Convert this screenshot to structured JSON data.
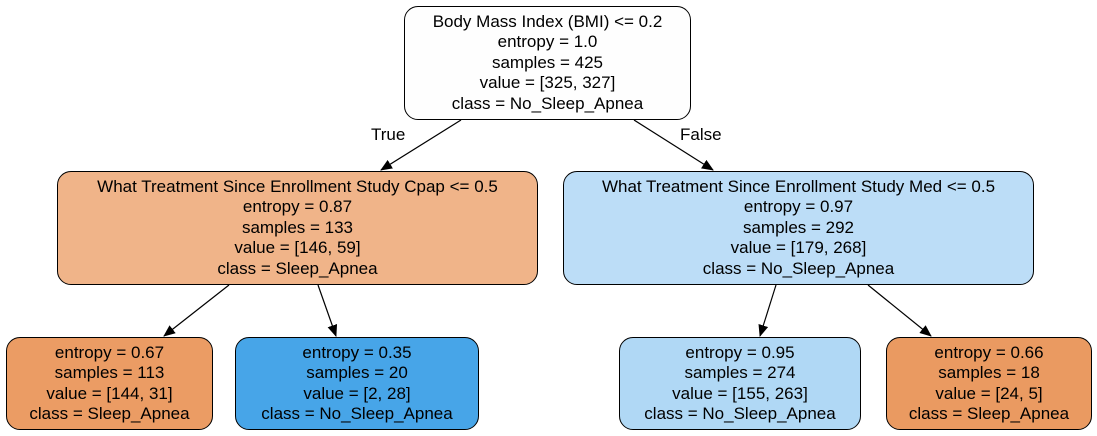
{
  "colors": {
    "root": "#fefefe",
    "left_internal": "#f0b489",
    "right_internal": "#bcddf7",
    "leaf_1": "#eb9c64",
    "leaf_2": "#47a5e8",
    "leaf_3": "#b0d8f5",
    "leaf_4": "#ea9a61"
  },
  "edges": {
    "true_label": "True",
    "false_label": "False"
  },
  "nodes": {
    "root": {
      "condition": "Body Mass Index (BMI) <= 0.2",
      "entropy": "entropy = 1.0",
      "samples": "samples = 425",
      "value": "value = [325, 327]",
      "class": "class = No_Sleep_Apnea"
    },
    "left": {
      "condition": "What Treatment Since Enrollment Study Cpap <= 0.5",
      "entropy": "entropy = 0.87",
      "samples": "samples = 133",
      "value": "value = [146, 59]",
      "class": "class = Sleep_Apnea"
    },
    "right": {
      "condition": "What Treatment Since Enrollment Study Med <= 0.5",
      "entropy": "entropy = 0.97",
      "samples": "samples = 292",
      "value": "value = [179, 268]",
      "class": "class = No_Sleep_Apnea"
    },
    "leaf_ll": {
      "entropy": "entropy = 0.67",
      "samples": "samples = 113",
      "value": "value = [144, 31]",
      "class": "class = Sleep_Apnea"
    },
    "leaf_lr": {
      "entropy": "entropy = 0.35",
      "samples": "samples = 20",
      "value": "value = [2, 28]",
      "class": "class = No_Sleep_Apnea"
    },
    "leaf_rl": {
      "entropy": "entropy = 0.95",
      "samples": "samples = 274",
      "value": "value = [155, 263]",
      "class": "class = No_Sleep_Apnea"
    },
    "leaf_rr": {
      "entropy": "entropy = 0.66",
      "samples": "samples = 18",
      "value": "value = [24, 5]",
      "class": "class = Sleep_Apnea"
    }
  }
}
